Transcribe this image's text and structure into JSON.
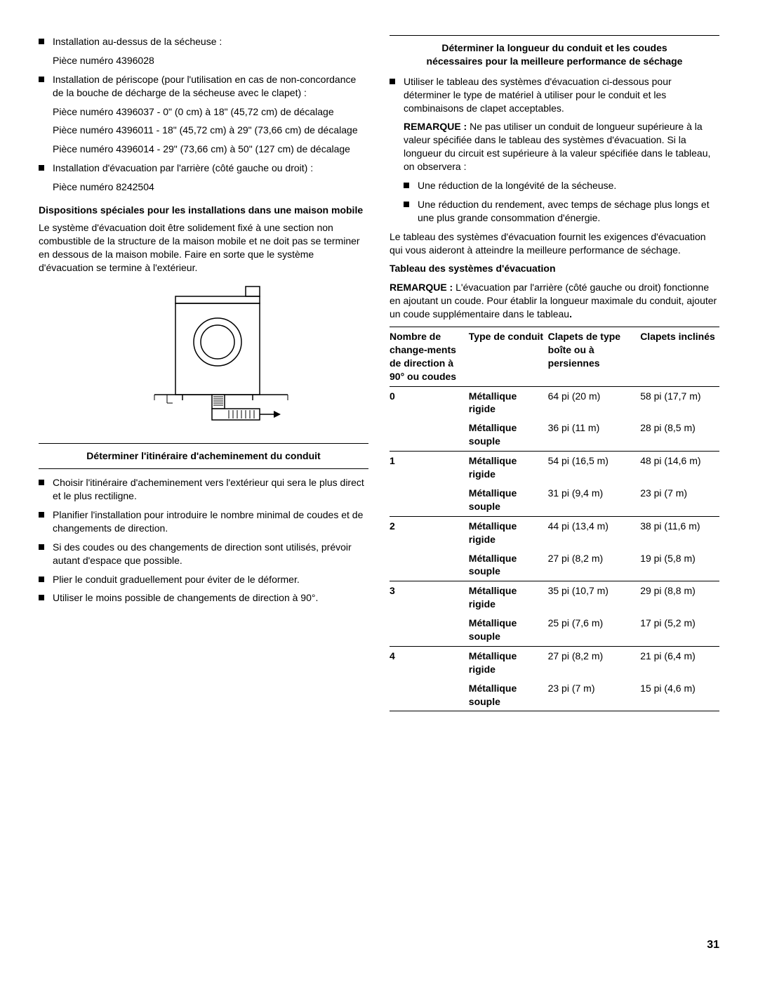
{
  "left": {
    "items": [
      {
        "bullet": "Installation au-dessus de la sécheuse :",
        "subs": [
          "Pièce numéro 4396028"
        ]
      },
      {
        "bullet": "Installation de périscope (pour l'utilisation en cas de non-concordance de la bouche de décharge de la sécheuse avec le clapet) :",
        "subs": [
          "Pièce numéro 4396037 - 0\" (0 cm) à 18\" (45,72 cm) de décalage",
          "Pièce numéro 4396011 - 18\" (45,72 cm) à 29\" (73,66 cm) de décalage",
          "Pièce numéro 4396014 - 29\" (73,66 cm) à 50\" (127 cm) de décalage"
        ]
      },
      {
        "bullet": "Installation d'évacuation par l'arrière (côté gauche ou droit) :",
        "subs": [
          "Pièce numéro 8242504"
        ]
      }
    ],
    "mobile_heading": "Dispositions spéciales pour les installations dans une maison mobile",
    "mobile_para": "Le système d'évacuation doit être solidement fixé à une section non combustible de la structure de la maison mobile et ne doit pas se terminer en dessous de la maison mobile. Faire en sorte que le système d'évacuation se termine à l'extérieur.",
    "route_heading": "Déterminer l'itinéraire d'acheminement du conduit",
    "route_bullets": [
      "Choisir l'itinéraire d'acheminement vers l'extérieur qui sera le plus direct et le plus rectiligne.",
      "Planifier l'installation pour introduire le nombre minimal de coudes et de changements de direction.",
      "Si des coudes ou des changements de direction sont utilisés, prévoir autant d'espace que possible.",
      "Plier le conduit graduellement pour éviter de le déformer.",
      "Utiliser le moins possible de changements de direction à 90°."
    ]
  },
  "right": {
    "title1": "Déterminer la longueur du conduit et les coudes",
    "title2": "nécessaires pour la meilleure performance de séchage",
    "bullet1": "Utiliser le tableau des systèmes d'évacuation ci-dessous pour déterminer le type de matériel à utiliser pour le conduit et les combinaisons de clapet acceptables.",
    "remarque_label": "REMARQUE :",
    "remarque_text": " Ne pas utiliser un conduit de longueur supérieure à la valeur spécifiée dans le tableau des systèmes d'évacuation. Si la longueur du circuit est supérieure à la valeur spécifiée dans le tableau, on observera :",
    "sub_bullets": [
      "Une réduction de la longévité de la sécheuse.",
      "Une réduction du rendement, avec temps de séchage plus longs et une plus grande consommation d'énergie."
    ],
    "para2": "Le tableau des systèmes d'évacuation fournit les exigences d'évacuation qui vous aideront à atteindre la meilleure performance de séchage.",
    "table_heading": "Tableau des systèmes d'évacuation",
    "remarque2_label": "REMARQUE :",
    "remarque2_text": " L'évacuation par l'arrière (côté gauche ou droit) fonctionne en ajoutant un coude. Pour établir la longueur maximale du conduit, ajouter un coude supplémentaire dans le tableau",
    "remarque2_dot": ".",
    "table": {
      "headers": [
        "Nombre de change-ments de direction à 90° ou coudes",
        "Type de conduit",
        "Clapets de type boîte ou à persiennes",
        "Clapets inclinés"
      ],
      "rows": [
        {
          "n": "0",
          "t": "Métallique rigide",
          "a": "64 pi (20 m)",
          "b": "58 pi (17,7 m)",
          "sep": true
        },
        {
          "n": "",
          "t": "Métallique souple",
          "a": "36 pi (11 m)",
          "b": "28 pi (8,5 m)"
        },
        {
          "n": "1",
          "t": "Métallique rigide",
          "a": "54 pi (16,5 m)",
          "b": "48 pi (14,6 m)",
          "sep": true
        },
        {
          "n": "",
          "t": "Métallique souple",
          "a": "31 pi (9,4 m)",
          "b": "23 pi (7 m)"
        },
        {
          "n": "2",
          "t": "Métallique rigide",
          "a": "44 pi (13,4 m)",
          "b": "38 pi (11,6 m)",
          "sep": true
        },
        {
          "n": "",
          "t": "Métallique souple",
          "a": "27 pi (8,2 m)",
          "b": "19 pi (5,8 m)"
        },
        {
          "n": "3",
          "t": "Métallique rigide",
          "a": "35 pi (10,7 m)",
          "b": "29 pi (8,8 m)",
          "sep": true
        },
        {
          "n": "",
          "t": "Métallique souple",
          "a": "25 pi (7,6 m)",
          "b": "17 pi (5,2 m)"
        },
        {
          "n": "4",
          "t": "Métallique rigide",
          "a": "27 pi (8,2 m)",
          "b": "21 pi (6,4 m)",
          "sep": true
        },
        {
          "n": "",
          "t": "Métallique souple",
          "a": "23 pi (7 m)",
          "b": "15 pi (4,6 m)"
        }
      ]
    }
  },
  "page_number": "31"
}
